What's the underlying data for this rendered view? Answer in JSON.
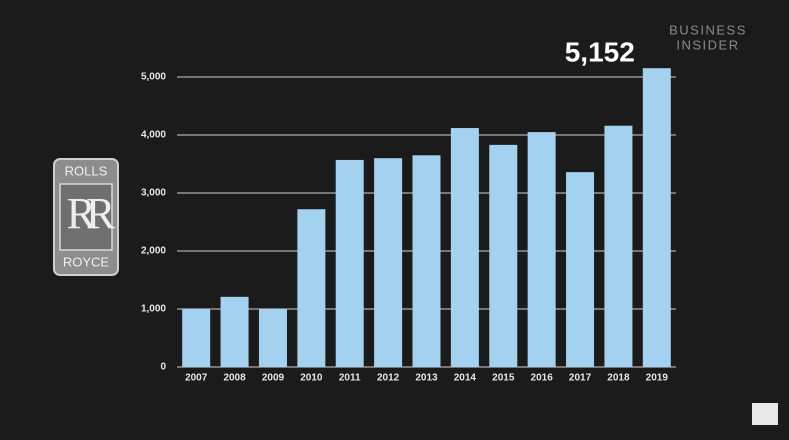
{
  "chart_data": {
    "type": "bar",
    "categories": [
      "2007",
      "2008",
      "2009",
      "2010",
      "2011",
      "2012",
      "2013",
      "2014",
      "2015",
      "2016",
      "2017",
      "2018",
      "2019"
    ],
    "values": [
      1000,
      1210,
      1000,
      2720,
      3570,
      3600,
      3650,
      4120,
      3830,
      4050,
      3360,
      4160,
      5152
    ],
    "color": "#a3d2f0",
    "ylim": [
      0,
      5400
    ],
    "yticks": [
      0,
      {
        "value": 1000,
        "label": "1,000"
      },
      {
        "value": 2000,
        "label": "2,000"
      },
      {
        "value": 3000,
        "label": "3,000"
      },
      {
        "value": 4000,
        "label": "4,000"
      },
      {
        "value": 5000,
        "label": "5,000"
      }
    ],
    "grid": true,
    "annotation": "5,152"
  },
  "logo": {
    "top": "ROLLS",
    "monogram": "RR",
    "bottom": "ROYCE"
  },
  "watermark": [
    "BUSINESS",
    "INSIDER"
  ]
}
